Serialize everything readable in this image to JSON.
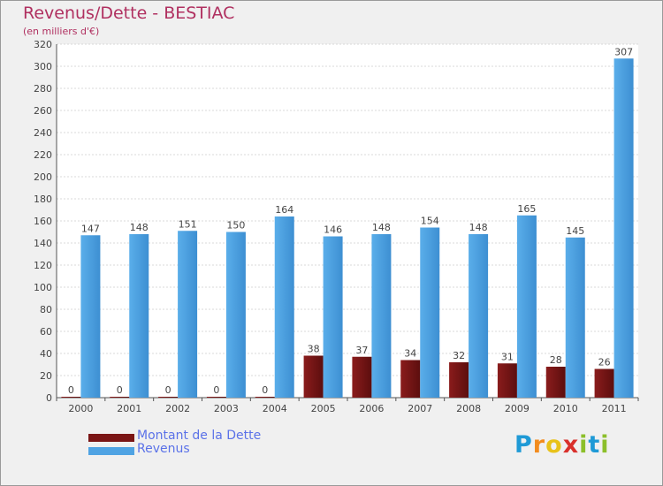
{
  "header": {
    "title": "Revenus/Dette - BESTIAC",
    "subtitle": "(en milliers d'€)"
  },
  "legend": {
    "debt_label": "Montant de la Dette",
    "revenue_label": "Revenus"
  },
  "logo": {
    "text": "Proxiti",
    "letters": [
      {
        "ch": "P",
        "color": "#1f9ad6"
      },
      {
        "ch": "r",
        "color": "#f28c1e"
      },
      {
        "ch": "o",
        "color": "#e8c21a"
      },
      {
        "ch": "x",
        "color": "#d9302b"
      },
      {
        "ch": "i",
        "color": "#8cbf2a"
      },
      {
        "ch": "t",
        "color": "#1f9ad6"
      },
      {
        "ch": "i",
        "color": "#8cbf2a"
      }
    ]
  },
  "colors": {
    "debt": "#7a1515",
    "revenue": "#4fa3e3",
    "text": "#444444",
    "title": "#b03060",
    "legend_text": "#5b72e8"
  },
  "chart_data": {
    "type": "bar",
    "title": "Revenus/Dette - BESTIAC",
    "ylabel": "(en milliers d'€)",
    "xlabel": "",
    "ylim": [
      0,
      320
    ],
    "ytick_step": 20,
    "grid": true,
    "categories": [
      "2000",
      "2001",
      "2002",
      "2003",
      "2004",
      "2005",
      "2006",
      "2007",
      "2008",
      "2009",
      "2010",
      "2011"
    ],
    "series": [
      {
        "name": "Montant de la Dette",
        "values": [
          0,
          0,
          0,
          0,
          0,
          38,
          37,
          34,
          32,
          31,
          28,
          26
        ]
      },
      {
        "name": "Revenus",
        "values": [
          147,
          148,
          151,
          150,
          164,
          146,
          148,
          154,
          148,
          165,
          145,
          307
        ]
      }
    ]
  }
}
